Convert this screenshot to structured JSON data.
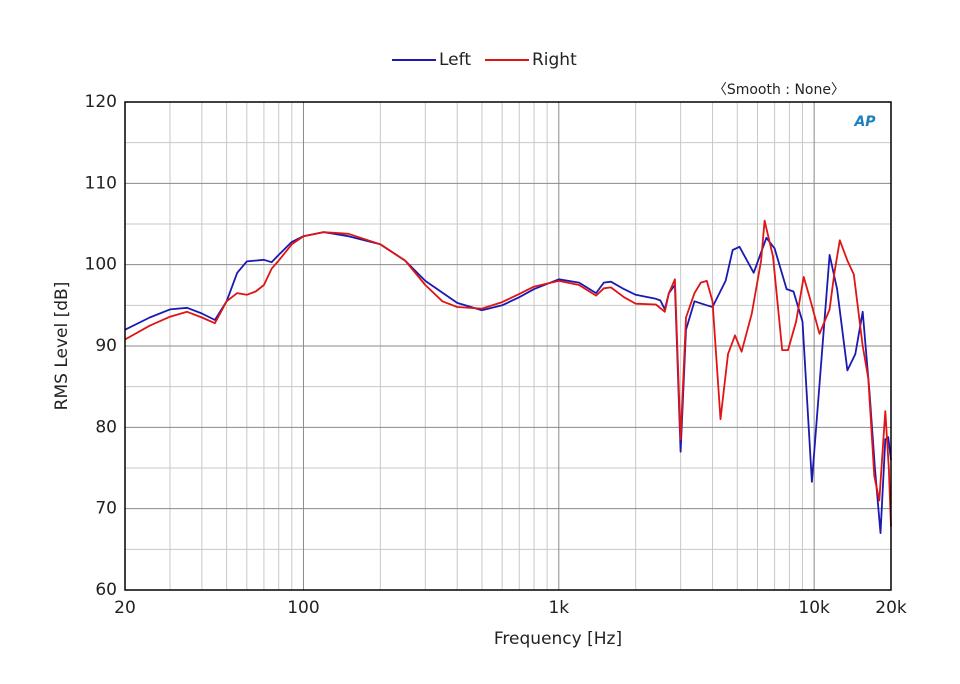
{
  "chart_data": {
    "type": "line",
    "xlabel": "Frequency [Hz]",
    "ylabel": "RMS Level [dB]",
    "annotation": "〈Smooth : None〉",
    "logo": "AP",
    "xscale": "log",
    "grid": true,
    "legend": "top",
    "xlim": [
      20,
      20000
    ],
    "ylim": [
      60,
      120
    ],
    "xticks": [
      20,
      100,
      {
        "value": 1000,
        "label": "1k"
      },
      {
        "value": 10000,
        "label": "10k"
      },
      {
        "value": 20000,
        "label": "20k"
      }
    ],
    "xminorticks": [
      30,
      40,
      50,
      60,
      70,
      80,
      90,
      200,
      300,
      400,
      500,
      600,
      700,
      800,
      900,
      2000,
      3000,
      4000,
      5000,
      6000,
      7000,
      8000,
      9000
    ],
    "yticks": [
      60,
      70,
      80,
      90,
      100,
      110,
      120
    ],
    "yminorticks": [
      65,
      75,
      85,
      95,
      105,
      115
    ],
    "series": [
      {
        "name": "Left",
        "color": "#1a1ab0",
        "x": [
          20,
          25,
          30,
          35,
          40,
          45,
          50,
          55,
          60,
          70,
          75,
          80,
          90,
          100,
          120,
          150,
          200,
          250,
          300,
          400,
          500,
          600,
          700,
          800,
          1000,
          1200,
          1400,
          1500,
          1600,
          1800,
          2000,
          2400,
          2500,
          2600,
          2700,
          2850,
          3000,
          3150,
          3400,
          3800,
          4000,
          4500,
          4800,
          5100,
          5800,
          6500,
          7000,
          7800,
          8300,
          9000,
          9800,
          11500,
          12300,
          13500,
          14500,
          15500,
          16500,
          17300,
          18200,
          19000,
          19500,
          20000
        ],
        "values": [
          92,
          93.5,
          94.5,
          94.7,
          94,
          93.2,
          95.5,
          99,
          100.4,
          100.6,
          100.3,
          101.2,
          102.8,
          103.5,
          104,
          103.5,
          102.5,
          100.5,
          98,
          95.3,
          94.4,
          95,
          96,
          97,
          98.2,
          97.8,
          96.5,
          97.8,
          97.9,
          97,
          96.3,
          95.8,
          95.6,
          94.5,
          96.5,
          97.5,
          77,
          92,
          95.5,
          95,
          94.8,
          98,
          101.8,
          102.2,
          99,
          103.3,
          102,
          97,
          96.7,
          93,
          73.3,
          101.2,
          97,
          87,
          89,
          94.2,
          84,
          75,
          67,
          78.5,
          78.8,
          76
        ]
      },
      {
        "name": "Right",
        "color": "#e01414",
        "x": [
          20,
          25,
          30,
          35,
          40,
          45,
          50,
          55,
          60,
          65,
          70,
          75,
          80,
          90,
          100,
          120,
          150,
          200,
          250,
          300,
          350,
          400,
          500,
          600,
          700,
          800,
          1000,
          1200,
          1400,
          1500,
          1600,
          1800,
          2000,
          2400,
          2600,
          2700,
          2850,
          3000,
          3150,
          3400,
          3600,
          3800,
          4000,
          4300,
          4600,
          4900,
          5200,
          5700,
          6200,
          6400,
          6900,
          7500,
          7900,
          8500,
          9100,
          9600,
          10500,
          11500,
          12000,
          12600,
          13500,
          14300,
          15500,
          16300,
          17200,
          18000,
          19000,
          19600,
          20000
        ],
        "values": [
          90.8,
          92.5,
          93.6,
          94.2,
          93.5,
          92.8,
          95.5,
          96.5,
          96.3,
          96.7,
          97.5,
          99.5,
          100.5,
          102.5,
          103.5,
          104,
          103.8,
          102.5,
          100.5,
          97.5,
          95.5,
          94.8,
          94.6,
          95.4,
          96.4,
          97.3,
          98,
          97.5,
          96.2,
          97.1,
          97.2,
          96,
          95.2,
          95.1,
          94.2,
          96.5,
          98.2,
          78.5,
          93.5,
          96.5,
          97.8,
          98,
          95.5,
          81,
          89,
          91.3,
          89.3,
          94,
          100.5,
          105.4,
          101,
          89.5,
          89.5,
          93,
          98.5,
          96,
          91.5,
          94.5,
          99,
          103,
          100.5,
          98.8,
          90,
          86,
          74,
          71,
          82,
          75,
          67.8
        ]
      }
    ]
  }
}
